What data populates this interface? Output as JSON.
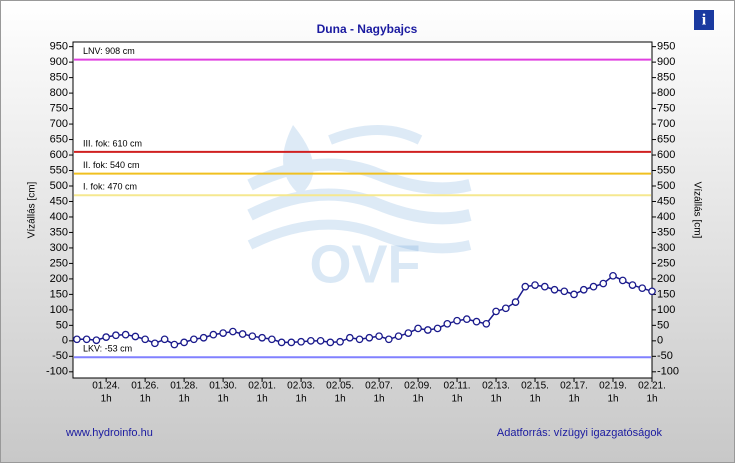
{
  "chart_data": {
    "type": "line",
    "title": "Duna - Nagybajcs",
    "ylabel": "Vízállás [cm]",
    "y2label": "Vízállás [cm]",
    "watermark": "OVF",
    "footer_left": "www.hydroinfo.hu",
    "footer_right": "Adatforrás: vízügyi igazgatóságok",
    "info_icon": "i",
    "xlim": [
      22.3,
      52
    ],
    "xticks": [
      {
        "value": 24,
        "label": [
          "01.24.",
          "1h"
        ]
      },
      {
        "value": 26,
        "label": [
          "01.26.",
          "1h"
        ]
      },
      {
        "value": 28,
        "label": [
          "01.28.",
          "1h"
        ]
      },
      {
        "value": 30,
        "label": [
          "01.30.",
          "1h"
        ]
      },
      {
        "value": 32,
        "label": [
          "02.01.",
          "1h"
        ]
      },
      {
        "value": 34,
        "label": [
          "02.03.",
          "1h"
        ]
      },
      {
        "value": 36,
        "label": [
          "02.05.",
          "1h"
        ]
      },
      {
        "value": 38,
        "label": [
          "02.07.",
          "1h"
        ]
      },
      {
        "value": 40,
        "label": [
          "02.09.",
          "1h"
        ]
      },
      {
        "value": 42,
        "label": [
          "02.11.",
          "1h"
        ]
      },
      {
        "value": 44,
        "label": [
          "02.13.",
          "1h"
        ]
      },
      {
        "value": 46,
        "label": [
          "02.15.",
          "1h"
        ]
      },
      {
        "value": 48,
        "label": [
          "02.17.",
          "1h"
        ]
      },
      {
        "value": 50,
        "label": [
          "02.19.",
          "1h"
        ]
      },
      {
        "value": 52,
        "label": [
          "02.21.",
          "1h"
        ]
      }
    ],
    "ylim": [
      -120,
      965
    ],
    "yticks": [
      -100,
      -50,
      0,
      50,
      100,
      150,
      200,
      250,
      300,
      350,
      400,
      450,
      500,
      550,
      600,
      650,
      700,
      750,
      800,
      850,
      900,
      950
    ],
    "y2ticks": [
      -100,
      -50,
      0,
      50,
      100,
      150,
      200,
      250,
      300,
      350,
      400,
      450,
      500,
      550,
      600,
      650,
      700,
      750,
      800,
      850,
      900,
      950
    ],
    "reference_lines": [
      {
        "label": "LNV: 908 cm",
        "value": 908,
        "color": "#e040e0"
      },
      {
        "label": "III. fok: 610 cm",
        "value": 610,
        "color": "#d02020"
      },
      {
        "label": "II. fok: 540 cm",
        "value": 540,
        "color": "#f0c020"
      },
      {
        "label": "I. fok: 470 cm",
        "value": 470,
        "color": "#f5e890"
      },
      {
        "label": "LKV: -53 cm",
        "value": -53,
        "color": "#8080ff"
      }
    ],
    "series": [
      {
        "color": "#1a1a8c",
        "x": [
          22.5,
          23,
          23.5,
          24,
          24.5,
          25,
          25.5,
          26,
          26.5,
          27,
          27.5,
          28,
          28.5,
          29,
          29.5,
          30,
          30.5,
          31,
          31.5,
          32,
          32.5,
          33,
          33.5,
          34,
          34.5,
          35,
          35.5,
          36,
          36.5,
          37,
          37.5,
          38,
          38.5,
          39,
          39.5,
          40,
          40.5,
          41,
          41.5,
          42,
          42.5,
          43,
          43.5,
          44,
          44.5,
          45,
          45.5,
          46,
          46.5,
          47,
          47.5,
          48,
          48.5,
          49,
          49.5,
          50,
          50.5,
          51,
          51.5,
          52
        ],
        "values": [
          5,
          5,
          2,
          12,
          18,
          20,
          14,
          5,
          -8,
          5,
          -12,
          -5,
          5,
          10,
          20,
          25,
          30,
          22,
          15,
          10,
          5,
          -5,
          -5,
          -3,
          0,
          0,
          -5,
          -3,
          10,
          5,
          10,
          15,
          5,
          15,
          25,
          40,
          35,
          40,
          55,
          65,
          70,
          62,
          55,
          95,
          105,
          125,
          175,
          180,
          175,
          165,
          160,
          150,
          165,
          175,
          185,
          210,
          195,
          180,
          170,
          160
        ]
      }
    ]
  }
}
